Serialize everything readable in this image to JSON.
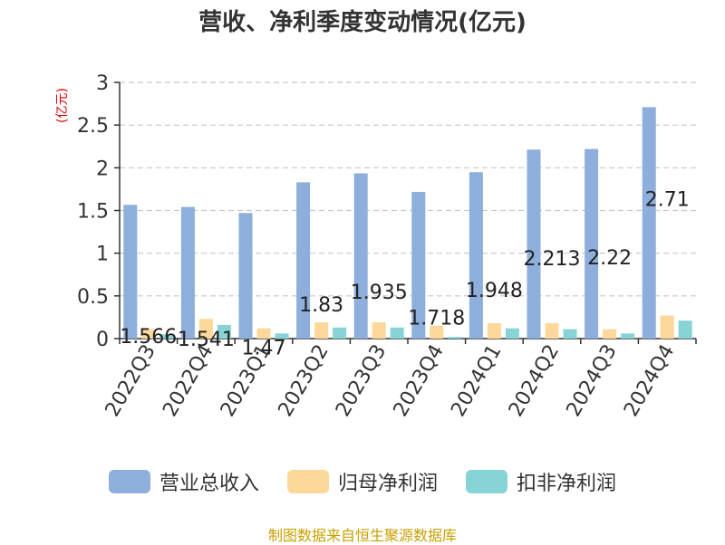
{
  "title": "营收、净利季度变动情况(亿元)",
  "unit_label": "(亿元)",
  "source": "制图数据来自恒生聚源数据库",
  "chart_data": {
    "type": "bar",
    "categories": [
      "2022Q3",
      "2022Q4",
      "2023Q1",
      "2023Q2",
      "2023Q3",
      "2023Q4",
      "2024Q1",
      "2024Q2",
      "2024Q3",
      "2024Q4"
    ],
    "series": [
      {
        "name": "营业总收入",
        "color": "#8eaedb",
        "values": [
          1.566,
          1.541,
          1.47,
          1.83,
          1.935,
          1.718,
          1.948,
          2.213,
          2.22,
          2.71
        ],
        "labels": [
          "1.566",
          "1.541",
          "1.47",
          "1.83",
          "1.935",
          "1.718",
          "1.948",
          "2.213",
          "2.22",
          "2.71"
        ]
      },
      {
        "name": "归母净利润",
        "color": "#fdd89a",
        "values": [
          0.11,
          0.23,
          0.12,
          0.19,
          0.19,
          0.15,
          0.18,
          0.18,
          0.11,
          0.27
        ]
      },
      {
        "name": "扣非净利润",
        "color": "#86d4d6",
        "values": [
          0.05,
          0.16,
          0.06,
          0.13,
          0.13,
          0.02,
          0.12,
          0.11,
          0.06,
          0.21
        ]
      }
    ],
    "ylim": [
      0,
      3
    ],
    "yticks": [
      "0",
      "0.5",
      "1",
      "1.5",
      "2",
      "2.5",
      "3"
    ],
    "grid": true,
    "legend_position": "bottom"
  }
}
